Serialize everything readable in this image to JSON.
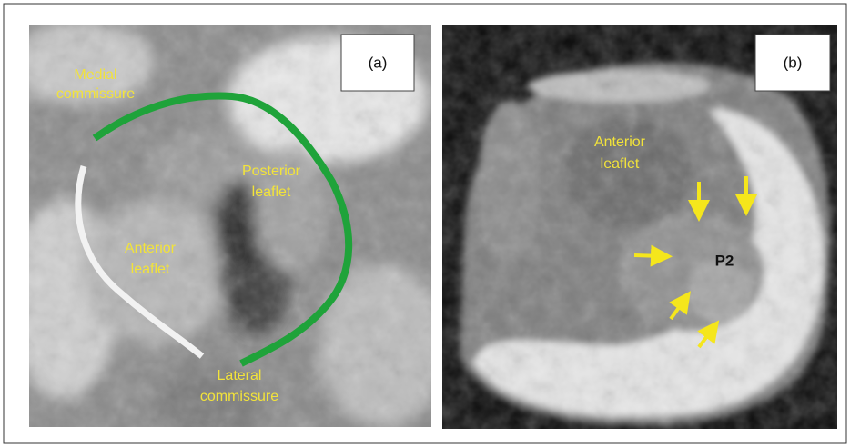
{
  "panels": [
    {
      "label": "(a)",
      "annotations": [
        {
          "lines": [
            "Medial",
            "commissure"
          ]
        },
        {
          "lines": [
            "Posterior",
            "leaflet"
          ]
        },
        {
          "lines": [
            "Anterior",
            "leaflet"
          ]
        },
        {
          "lines": [
            "Lateral",
            "commissure"
          ]
        }
      ]
    },
    {
      "label": "(b)",
      "annotations": [
        {
          "lines": [
            "Anterior",
            "leaflet"
          ]
        },
        {
          "lines": [
            "P2"
          ]
        }
      ]
    }
  ]
}
